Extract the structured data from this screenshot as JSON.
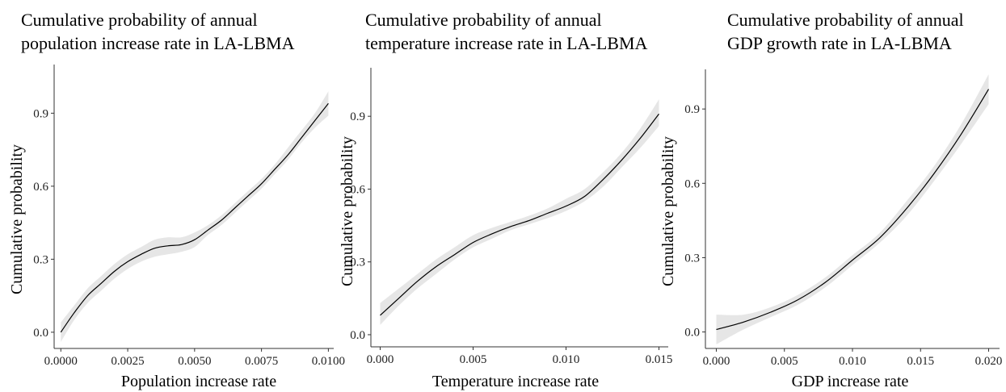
{
  "chart_data": [
    {
      "type": "line",
      "title_line1": "Cumulative probability of annual",
      "title_line2": "population increase rate in LA-LBMA",
      "xlabel": "Population increase rate",
      "ylabel": "Cumulative probability",
      "xlim": [
        -0.00025,
        0.0102
      ],
      "ylim": [
        -0.06,
        1.1
      ],
      "xticks": [
        {
          "v": 0,
          "label": "0.0000"
        },
        {
          "v": 0.0025,
          "label": "0.0025"
        },
        {
          "v": 0.005,
          "label": "0.0050"
        },
        {
          "v": 0.0075,
          "label": "0.0075"
        },
        {
          "v": 0.01,
          "label": "0.0100"
        }
      ],
      "yticks": [
        {
          "v": 0.0,
          "label": "0.0"
        },
        {
          "v": 0.3,
          "label": "0.3"
        },
        {
          "v": 0.6,
          "label": "0.6"
        },
        {
          "v": 0.9,
          "label": "0.9"
        }
      ],
      "band_color": "#e6e6e6",
      "line_color": "#000000",
      "x": [
        0,
        0.0005,
        0.001,
        0.0015,
        0.002,
        0.0025,
        0.003,
        0.0035,
        0.004,
        0.0045,
        0.005,
        0.0055,
        0.006,
        0.0065,
        0.007,
        0.0075,
        0.008,
        0.0085,
        0.009,
        0.0095,
        0.01
      ],
      "y": [
        0.0,
        0.08,
        0.15,
        0.2,
        0.25,
        0.29,
        0.32,
        0.345,
        0.355,
        0.36,
        0.38,
        0.42,
        0.46,
        0.51,
        0.56,
        0.61,
        0.67,
        0.73,
        0.8,
        0.87,
        0.94
      ],
      "lower": [
        -0.04,
        0.05,
        0.12,
        0.17,
        0.22,
        0.26,
        0.29,
        0.31,
        0.32,
        0.33,
        0.35,
        0.4,
        0.44,
        0.49,
        0.54,
        0.59,
        0.65,
        0.71,
        0.78,
        0.84,
        0.89
      ],
      "upper": [
        0.04,
        0.11,
        0.18,
        0.23,
        0.28,
        0.32,
        0.35,
        0.38,
        0.39,
        0.39,
        0.41,
        0.44,
        0.48,
        0.53,
        0.58,
        0.63,
        0.69,
        0.76,
        0.83,
        0.9,
        0.99
      ]
    },
    {
      "type": "line",
      "title_line1": "Cumulative probability of annual",
      "title_line2": "temperature increase rate in LA-LBMA",
      "xlabel": "Temperature increase rate",
      "ylabel": "Cumulative probability",
      "xlim": [
        -0.0005,
        0.0155
      ],
      "ylim": [
        -0.04,
        1.1
      ],
      "xticks": [
        {
          "v": 0,
          "label": "0.000"
        },
        {
          "v": 0.005,
          "label": "0.005"
        },
        {
          "v": 0.01,
          "label": "0.010"
        },
        {
          "v": 0.015,
          "label": "0.015"
        }
      ],
      "yticks": [
        {
          "v": 0.0,
          "label": "0.0"
        },
        {
          "v": 0.3,
          "label": "0.3"
        },
        {
          "v": 0.6,
          "label": "0.6"
        },
        {
          "v": 0.9,
          "label": "0.9"
        }
      ],
      "band_color": "#e6e6e6",
      "line_color": "#000000",
      "x": [
        0,
        0.001,
        0.002,
        0.003,
        0.004,
        0.005,
        0.006,
        0.007,
        0.008,
        0.009,
        0.01,
        0.011,
        0.012,
        0.013,
        0.014,
        0.015
      ],
      "y": [
        0.08,
        0.15,
        0.22,
        0.28,
        0.33,
        0.38,
        0.415,
        0.445,
        0.47,
        0.5,
        0.53,
        0.57,
        0.64,
        0.72,
        0.81,
        0.91
      ],
      "lower": [
        0.04,
        0.12,
        0.19,
        0.25,
        0.31,
        0.36,
        0.395,
        0.43,
        0.455,
        0.48,
        0.51,
        0.55,
        0.61,
        0.69,
        0.77,
        0.86
      ],
      "upper": [
        0.13,
        0.19,
        0.25,
        0.31,
        0.36,
        0.41,
        0.44,
        0.465,
        0.49,
        0.52,
        0.56,
        0.6,
        0.67,
        0.75,
        0.85,
        0.97
      ]
    },
    {
      "type": "line",
      "title_line1": "Cumulative probability of annual",
      "title_line2": "GDP growth rate in LA-LBMA",
      "xlabel": "GDP increase rate",
      "ylabel": "Cumulative probability",
      "xlim": [
        -0.0008,
        0.0208
      ],
      "ylim": [
        -0.06,
        1.06
      ],
      "xticks": [
        {
          "v": 0,
          "label": "0.000"
        },
        {
          "v": 0.005,
          "label": "0.005"
        },
        {
          "v": 0.01,
          "label": "0.010"
        },
        {
          "v": 0.015,
          "label": "0.015"
        },
        {
          "v": 0.02,
          "label": "0.020"
        }
      ],
      "yticks": [
        {
          "v": 0.0,
          "label": "0.0"
        },
        {
          "v": 0.3,
          "label": "0.3"
        },
        {
          "v": 0.6,
          "label": "0.6"
        },
        {
          "v": 0.9,
          "label": "0.9"
        }
      ],
      "band_color": "#e6e6e6",
      "line_color": "#000000",
      "x": [
        0,
        0.002,
        0.004,
        0.006,
        0.008,
        0.01,
        0.012,
        0.014,
        0.016,
        0.018,
        0.02
      ],
      "y": [
        0.01,
        0.04,
        0.08,
        0.13,
        0.2,
        0.29,
        0.38,
        0.5,
        0.64,
        0.8,
        0.98
      ],
      "lower": [
        -0.05,
        0.01,
        0.06,
        0.11,
        0.18,
        0.27,
        0.36,
        0.47,
        0.61,
        0.76,
        0.92
      ],
      "upper": [
        0.07,
        0.07,
        0.1,
        0.15,
        0.22,
        0.31,
        0.4,
        0.53,
        0.67,
        0.84,
        1.04
      ]
    }
  ]
}
